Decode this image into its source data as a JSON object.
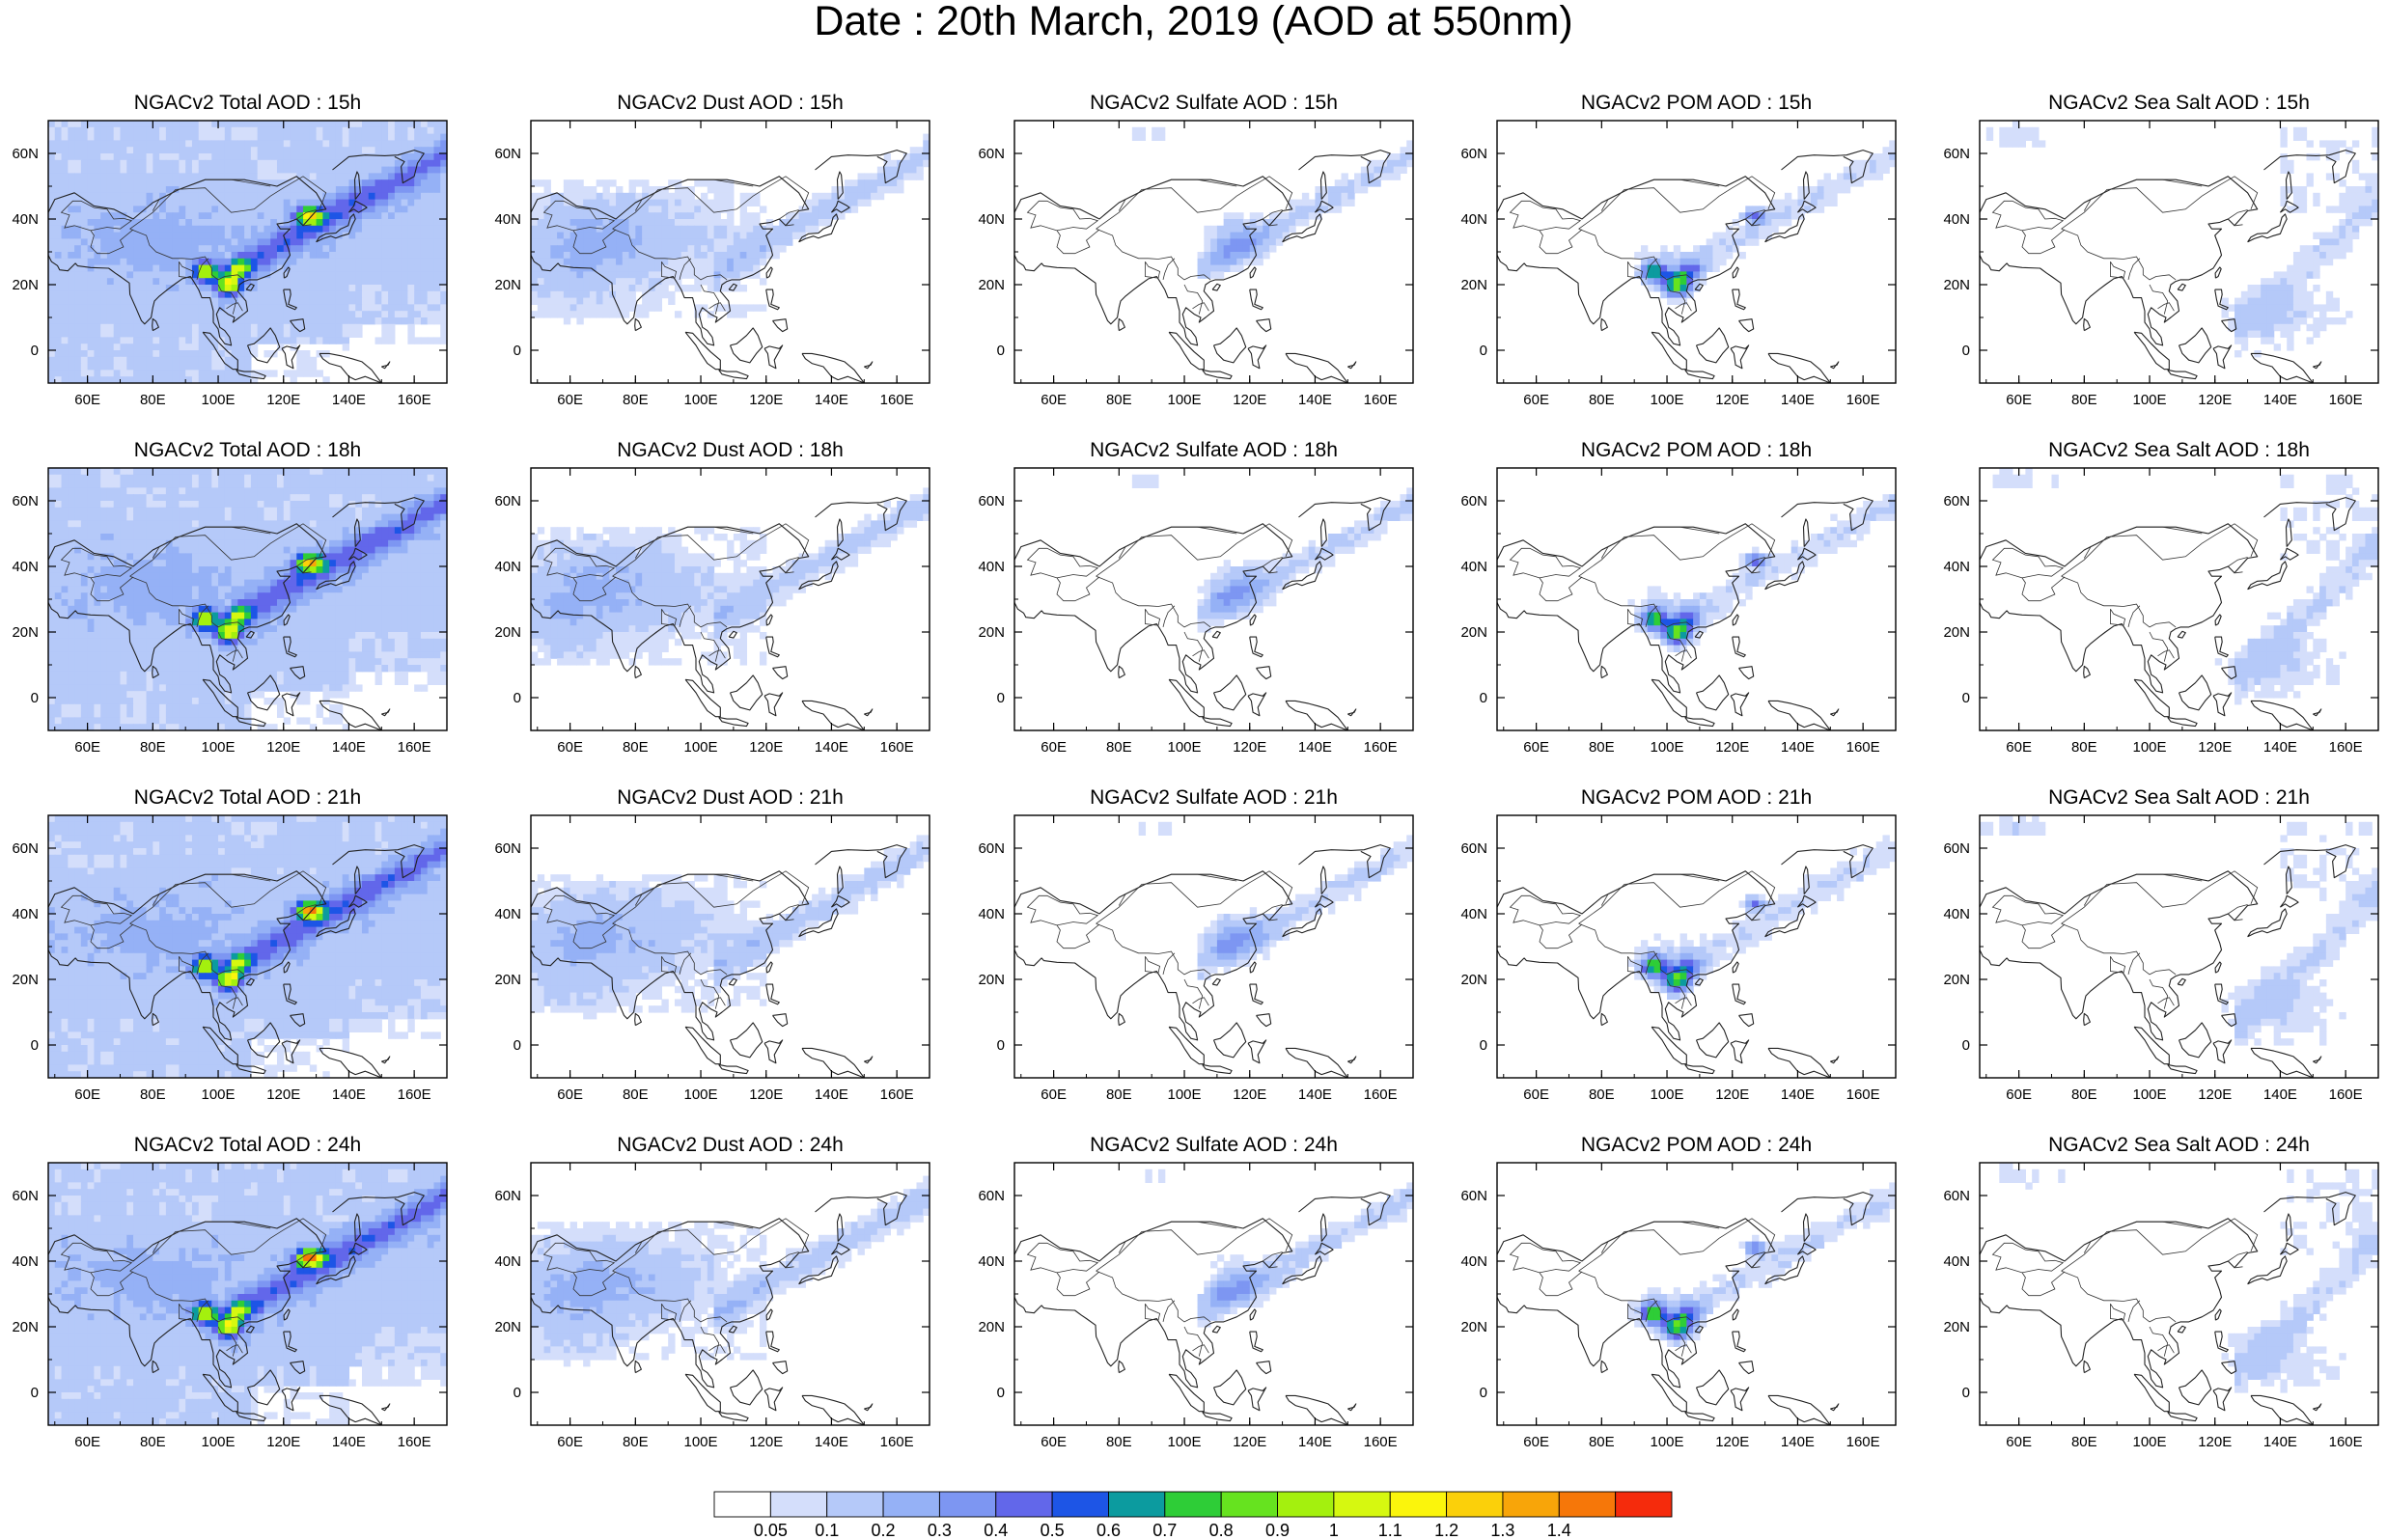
{
  "title": "Date : 20th March, 2019 (AOD at 550nm)",
  "colorbar": {
    "colors": [
      "#ffffff",
      "#d4defb",
      "#b5c9f9",
      "#95b1f6",
      "#7d96f2",
      "#6267ea",
      "#1d55e6",
      "#0c9b9f",
      "#2ecd37",
      "#66e31f",
      "#a4f00e",
      "#d6f810",
      "#fbf50c",
      "#fbd00a",
      "#f8a509",
      "#f67709",
      "#f52b0c"
    ],
    "labels": [
      "0.05",
      "0.1",
      "0.2",
      "0.3",
      "0.4",
      "0.5",
      "0.6",
      "0.7",
      "0.8",
      "0.9",
      "1",
      "1.1",
      "1.2",
      "1.3",
      "1.4"
    ]
  },
  "axes": {
    "x_ticks": [
      "60E",
      "80E",
      "100E",
      "120E",
      "140E",
      "160E"
    ],
    "y_ticks": [
      "60N",
      "40N",
      "20N",
      "0"
    ]
  },
  "panels": [
    {
      "title": "NGACv2 Total AOD : 15h",
      "field": "total"
    },
    {
      "title": "NGACv2 Dust AOD : 15h",
      "field": "dust"
    },
    {
      "title": "NGACv2 Sulfate AOD : 15h",
      "field": "sulfate"
    },
    {
      "title": "NGACv2 POM AOD : 15h",
      "field": "pom"
    },
    {
      "title": "NGACv2 Sea Salt AOD : 15h",
      "field": "seasalt"
    },
    {
      "title": "NGACv2 Total AOD : 18h",
      "field": "total"
    },
    {
      "title": "NGACv2 Dust AOD : 18h",
      "field": "dust"
    },
    {
      "title": "NGACv2 Sulfate AOD : 18h",
      "field": "sulfate"
    },
    {
      "title": "NGACv2 POM AOD : 18h",
      "field": "pom"
    },
    {
      "title": "NGACv2 Sea Salt AOD : 18h",
      "field": "seasalt"
    },
    {
      "title": "NGACv2 Total AOD : 21h",
      "field": "total"
    },
    {
      "title": "NGACv2 Dust AOD : 21h",
      "field": "dust"
    },
    {
      "title": "NGACv2 Sulfate AOD : 21h",
      "field": "sulfate"
    },
    {
      "title": "NGACv2 POM AOD : 21h",
      "field": "pom"
    },
    {
      "title": "NGACv2 Sea Salt AOD : 21h",
      "field": "seasalt"
    },
    {
      "title": "NGACv2 Total AOD : 24h",
      "field": "total"
    },
    {
      "title": "NGACv2 Dust AOD : 24h",
      "field": "dust"
    },
    {
      "title": "NGACv2 Sulfate AOD : 24h",
      "field": "sulfate"
    },
    {
      "title": "NGACv2 POM AOD : 24h",
      "field": "pom"
    },
    {
      "title": "NGACv2 Sea Salt  AOD : 24h",
      "field": "seasalt"
    }
  ]
}
